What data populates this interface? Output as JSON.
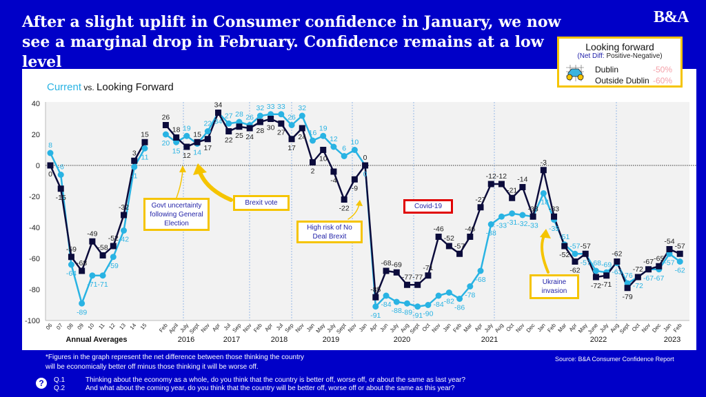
{
  "header": {
    "title": "After a slight uplift in Consumer confidence in January, we now see a marginal drop in February. Confidence remains at a low level",
    "logo": "B&A"
  },
  "legend_box": {
    "title": "Looking forward",
    "subtitle_prefix": "(Net Diff: ",
    "subtitle_rest": "Positive-Negative)",
    "icon": "binoculars-icon",
    "rows": [
      {
        "label": "Dublin",
        "value": "-50%"
      },
      {
        "label": "Outside Dublin",
        "value": "-60%"
      }
    ]
  },
  "chart_data": {
    "type": "line",
    "title_parts": [
      "Current",
      " vs. ",
      "Looking Forward"
    ],
    "ylim": [
      -100,
      40
    ],
    "yticks": [
      40,
      20,
      0,
      -20,
      -40,
      -60,
      -80,
      -100
    ],
    "grid": false,
    "zero_line": true,
    "categories": [
      "06",
      "07",
      "08",
      "09",
      "10",
      "11",
      "12",
      "13",
      "14",
      "15",
      "Feb",
      "April",
      "July",
      "Sept",
      "Nov",
      "Apr",
      "Jul",
      "Sep",
      "Nov",
      "Feb",
      "Apr",
      "Jul",
      "Sep",
      "Nov",
      "Jan",
      "May",
      "July",
      "Sept",
      "Nov",
      "Jan",
      "Apr",
      "Jun",
      "July",
      "Aug",
      "Sept",
      "Oct",
      "Nov",
      "Jan",
      "Feb",
      "Mar",
      "Apr",
      "July",
      "Aug",
      "Oct",
      "Nov",
      "Dec",
      "Jan",
      "Feb",
      "Mar",
      "Apr",
      "May",
      "June",
      "July",
      "Aug",
      "Sept",
      "Oct",
      "Nov",
      "Dec",
      "Jan",
      "Feb"
    ],
    "group_labels": [
      "Annual Averages",
      "2016",
      "2017",
      "2018",
      "2019",
      "2020",
      "2021",
      "2022",
      "2023"
    ],
    "series": [
      {
        "color": "#0b0b3b",
        "marker": "square",
        "values": [
          0,
          -15,
          -59,
          -68,
          -49,
          -58,
          -52,
          -32,
          3,
          15,
          26,
          18,
          12,
          15,
          17,
          34,
          22,
          25,
          24,
          28,
          30,
          27,
          17,
          24,
          2,
          10,
          -4,
          -22,
          -9,
          0,
          -85,
          -68,
          -69,
          -77,
          -77,
          -71,
          -46,
          -52,
          -57,
          -46,
          -27,
          -12,
          -12,
          -21,
          -14,
          -33,
          -3,
          -33,
          -52,
          -62,
          -57,
          -72,
          -71,
          -62,
          -79,
          -72,
          -67,
          -65,
          -54,
          -57
        ]
      },
      {
        "color": "#29b3e3",
        "marker": "circle",
        "values": [
          8,
          -6,
          -64,
          -89,
          -71,
          -71,
          -59,
          -42,
          -1,
          11,
          20,
          15,
          19,
          14,
          22,
          34,
          27,
          28,
          26,
          32,
          33,
          33,
          26,
          32,
          16,
          19,
          12,
          6,
          10,
          0,
          -91,
          -84,
          -88,
          -89,
          -91,
          -90,
          -84,
          -82,
          -86,
          -78,
          -68,
          -38,
          -33,
          -31,
          -32,
          -33,
          -18,
          -35,
          -51,
          -57,
          -57,
          -68,
          -69,
          -63,
          -76,
          -72,
          -67,
          -67,
          -57,
          -62
        ]
      }
    ],
    "annotations": [
      "Govt uncertainty following General Election",
      "Brexit vote",
      "High risk of No Deal Brexit",
      "Covid-19",
      "Ukraine invasion"
    ]
  },
  "footer": {
    "note": "*Figures in the graph represent the net difference between those thinking the country will be economically better off minus those thinking it will be worse off.",
    "source": "Source: B&A Consumer Confidence Report",
    "questions": [
      {
        "id": "Q.1",
        "text": "Thinking about the economy as a whole, do you think that the country is better off, worse off, or about the same as last year?"
      },
      {
        "id": "Q.2",
        "text": "And what about the coming year, do you think that the country will be better off, worse off or about the same as this year?"
      }
    ]
  }
}
